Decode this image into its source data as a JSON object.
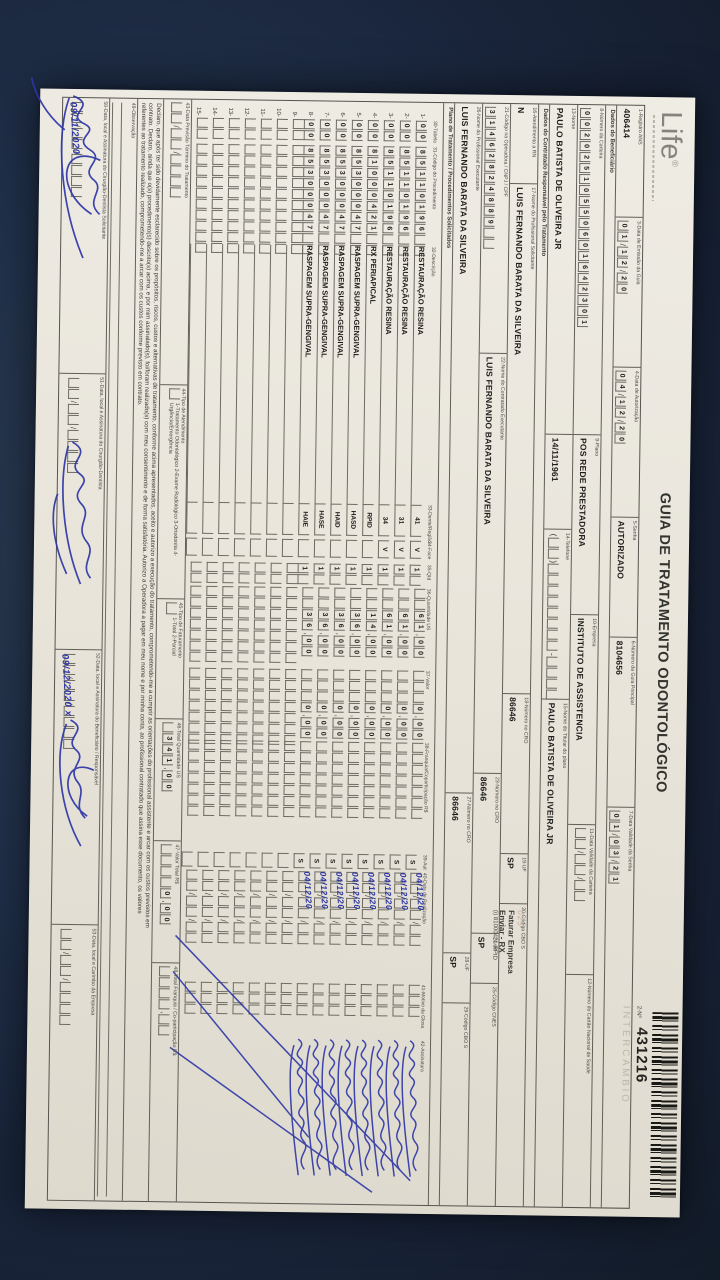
{
  "header": {
    "logo": "Life",
    "logo_reg": "®",
    "title": "GUIA DE TRATAMENTO ODONTOLÓGICO",
    "numero_label": "2-Nº",
    "numero": "431216",
    "watermark": "INTERCÂMBIO"
  },
  "top_fields": [
    {
      "id": "registro-ans",
      "label": "1-Registro ANS",
      "type": "text",
      "value": "406414"
    },
    {
      "id": "data-emissao",
      "label": "3-Data de Emissão da Guia",
      "type": "boxes",
      "value": "01/12/20"
    },
    {
      "id": "data-autorizacao",
      "label": "4-Data de Autorização",
      "type": "boxes",
      "value": "04/12/20"
    },
    {
      "id": "senha",
      "label": "5-Senha",
      "type": "text",
      "value": "AUTORIZADO"
    },
    {
      "id": "guia-principal",
      "label": "6-Número da Guia Principal",
      "type": "text",
      "value": "8104656"
    },
    {
      "id": "validade-senha",
      "label": "7-Data Validade da Senha",
      "type": "boxes",
      "value": "01/03/21"
    }
  ],
  "section_titles": {
    "beneficiario": "Dados do Beneficiário",
    "contratado": "Dados do Contratado Responsável pelo Tratamento",
    "plano": "Plano de Tratamento / Procedimentos Solicitados"
  },
  "beneficiario_rows": [
    [
      {
        "id": "numero-carteira",
        "label": "8-Número da Carteira",
        "type": "boxes",
        "value": "00202510550601642301"
      },
      {
        "id": "plano",
        "label": "9-Plano",
        "type": "text",
        "value": "POS REDE PRESTADORA"
      },
      {
        "id": "empresa",
        "label": "10-Empresa",
        "type": "text",
        "value": "INSTITUTO DE ASSISTENCIA"
      },
      {
        "id": "validade-carteira",
        "label": "11-Data Validade da Carteira",
        "type": "boxes",
        "value": "  /  /  "
      },
      {
        "id": "cns",
        "label": "12-Número do Cartão Nacional de Saúde",
        "type": "text",
        "value": ""
      }
    ],
    [
      {
        "id": "nome",
        "label": "13-Nome",
        "type": "text",
        "value": "PAULO BATISTA DE OLIVEIRA JR"
      },
      {
        "id": "nascimento",
        "label": "",
        "type": "text",
        "value": "14/11/1961"
      },
      {
        "id": "telefone",
        "label": "14-Telefone",
        "type": "boxes",
        "value": "(  )        -    "
      },
      {
        "id": "titular",
        "label": "15-Nome do Titular do plano",
        "type": "text",
        "value": "PAULO BATISTA DE OLIVEIRA JR"
      }
    ]
  ],
  "contratado_rows": [
    [
      {
        "id": "atendimento-rn",
        "label": "16-Atendimento a RN",
        "type": "text",
        "value": "N"
      },
      {
        "id": "prof-solicitante",
        "label": "17-Nome do Profissional Solicitante",
        "type": "text",
        "value": "LUIS FERNANDO BARATA DA SILVEIRA"
      },
      {
        "id": "cro-18",
        "label": "18-Número no CRO",
        "type": "text",
        "value": "86646"
      },
      {
        "id": "uf-19",
        "label": "19-UF",
        "type": "text",
        "value": "SP"
      },
      {
        "id": "cbo-20",
        "label": "20-Código CBO S",
        "type": "text",
        "value": ""
      }
    ],
    [
      {
        "id": "codigo-operadora",
        "label": "21-Código na Operadora / CNPJ / CPF",
        "type": "boxes",
        "value": "31462824889  "
      },
      {
        "id": "contratado-executante",
        "label": "22-Nome do Contratado Executante",
        "type": "text",
        "value": "LUIS FERNANDO BARATA DA SILVEIRA"
      },
      {
        "id": "cro-23",
        "label": "23-Número no CRO",
        "type": "text",
        "value": "86646"
      },
      {
        "id": "uf-24",
        "label": "24-UF",
        "type": "text",
        "value": "SP"
      },
      {
        "id": "cnes-25",
        "label": "25-Código CNES",
        "type": "text",
        "value": ""
      }
    ],
    [
      {
        "id": "prof-executante",
        "label": "26-Nome do Profissional Executante",
        "type": "text",
        "value": "LUIS FERNANDO BARATA DA SILVEIRA"
      },
      {
        "id": "cro-27",
        "label": "27-Número no CRO",
        "type": "text",
        "value": "86646"
      },
      {
        "id": "uf-28",
        "label": "28-UF",
        "type": "text",
        "value": "SP"
      },
      {
        "id": "cbo-29",
        "label": "29-Código CBO S",
        "type": "text",
        "value": ""
      }
    ]
  ],
  "annotation": {
    "stamp": "025",
    "lines": [
      "Faturar Empresa",
      "Enviar - RX",
      "(i) 81000421-RPID"
    ]
  },
  "table": {
    "headers": [
      "30-Tabela",
      "31-Código do Procedimento",
      "32-Descrição",
      "33-Dente/Região",
      "34-Face",
      "35-Qtd",
      "36-Quantidade US",
      "37-Valor",
      "38-Franquia/Coparticipação R$",
      "39-Aut",
      "40-Data de Realização",
      "41-Motivo da Glosa",
      "42-Assinatura"
    ],
    "rows": [
      {
        "n": "1",
        "tabela": "00",
        "codigo": "85110196  ",
        "descricao": "RESTAURAÇÃO RESINA",
        "dente": "41",
        "face": "V",
        "qtd": "1 ",
        "qtd_us": "  61,00",
        "valor": "   0,00",
        "franquia": "       ",
        "aut": "S",
        "data": "04/12/20"
      },
      {
        "n": "2",
        "tabela": "00",
        "codigo": "85110196  ",
        "descricao": "RESTAURAÇÃO RESINA",
        "dente": "31",
        "face": "V",
        "qtd": "1 ",
        "qtd_us": "  61,00",
        "valor": "   0,00",
        "franquia": "       ",
        "aut": "S",
        "data": "04/12/20"
      },
      {
        "n": "3",
        "tabela": "00",
        "codigo": "85110196  ",
        "descricao": "RESTAURAÇÃO RESINA",
        "dente": "34",
        "face": "V",
        "qtd": "1 ",
        "qtd_us": "  61,00",
        "valor": "   0,00",
        "franquia": "       ",
        "aut": "S",
        "data": "04/12/20"
      },
      {
        "n": "4",
        "tabela": "00",
        "codigo": "81000421  ",
        "descricao": "RX PERIAPICAL",
        "dente": "RPID",
        "face": "",
        "qtd": "1 ",
        "qtd_us": "  14,00",
        "valor": "   0,00",
        "franquia": "       ",
        "aut": "S",
        "data": "04/12/20"
      },
      {
        "n": "5",
        "tabela": "00",
        "codigo": "85300047  ",
        "descricao": "RASPAGEM SUPRA-GENGIVAL",
        "dente": "HASD",
        "face": "",
        "qtd": "1 ",
        "qtd_us": "  36,00",
        "valor": "   0,00",
        "franquia": "       ",
        "aut": "S",
        "data": "04/12/20"
      },
      {
        "n": "6",
        "tabela": "00",
        "codigo": "85300047  ",
        "descricao": "RASPAGEM SUPRA-GENGIVAL",
        "dente": "HAID",
        "face": "",
        "qtd": "1 ",
        "qtd_us": "  36,00",
        "valor": "   0,00",
        "franquia": "       ",
        "aut": "S",
        "data": "04/12/20"
      },
      {
        "n": "7",
        "tabela": "00",
        "codigo": "85300047  ",
        "descricao": "RASPAGEM SUPRA-GENGIVAL",
        "dente": "HASE",
        "face": "",
        "qtd": "1 ",
        "qtd_us": "  36,00",
        "valor": "   0,00",
        "franquia": "       ",
        "aut": "S",
        "data": "04/12/20"
      },
      {
        "n": "8",
        "tabela": "00",
        "codigo": "85300047  ",
        "descricao": "RASPAGEM SUPRA-GENGIVAL",
        "dente": "HAIE",
        "face": "",
        "qtd": "1 ",
        "qtd_us": "  36,00",
        "valor": "   0,00",
        "franquia": "       ",
        "aut": "S",
        "data": "04/12/20"
      },
      {
        "n": "9",
        "tabela": "  ",
        "codigo": "          ",
        "descricao": "",
        "dente": "",
        "face": "",
        "qtd": "  ",
        "qtd_us": "       ",
        "valor": "       ",
        "franquia": "       ",
        "aut": "",
        "data": ""
      },
      {
        "n": "10",
        "tabela": "  ",
        "codigo": "          ",
        "descricao": "",
        "dente": "",
        "face": "",
        "qtd": "  ",
        "qtd_us": "       ",
        "valor": "       ",
        "franquia": "       ",
        "aut": "",
        "data": ""
      },
      {
        "n": "11",
        "tabela": "  ",
        "codigo": "          ",
        "descricao": "",
        "dente": "",
        "face": "",
        "qtd": "  ",
        "qtd_us": "       ",
        "valor": "       ",
        "franquia": "       ",
        "aut": "",
        "data": ""
      },
      {
        "n": "12",
        "tabela": "  ",
        "codigo": "          ",
        "descricao": "",
        "dente": "",
        "face": "",
        "qtd": "  ",
        "qtd_us": "       ",
        "valor": "       ",
        "franquia": "       ",
        "aut": "",
        "data": ""
      },
      {
        "n": "13",
        "tabela": "  ",
        "codigo": "          ",
        "descricao": "",
        "dente": "",
        "face": "",
        "qtd": "  ",
        "qtd_us": "       ",
        "valor": "       ",
        "franquia": "       ",
        "aut": "",
        "data": ""
      },
      {
        "n": "14",
        "tabela": "  ",
        "codigo": "          ",
        "descricao": "",
        "dente": "",
        "face": "",
        "qtd": "  ",
        "qtd_us": "       ",
        "valor": "       ",
        "franquia": "       ",
        "aut": "",
        "data": ""
      },
      {
        "n": "15",
        "tabela": "  ",
        "codigo": "          ",
        "descricao": "",
        "dente": "",
        "face": "",
        "qtd": "  ",
        "qtd_us": "       ",
        "valor": "       ",
        "franquia": "       ",
        "aut": "",
        "data": ""
      }
    ]
  },
  "bottom_fields": {
    "previsao": {
      "label": "43-Data Previsão Término do Tratamento",
      "value": "  /  /    "
    },
    "tipo_atendimento": {
      "label": "44-Tipo de Atendimento",
      "box": " ",
      "options": "1-Tratamento Odontológico  2-Exame Radiológico  3-Ortodontia  4-Urgência/Emergência"
    },
    "tipo_faturamento": {
      "label": "45-Tipo de Faturamento",
      "box": " ",
      "options": "1-Total  2-Parcial"
    },
    "total_us": {
      "label": "46-Total Quantidade US",
      "value": " 341,00"
    },
    "valor_total": {
      "label": "47-Valor Total R$",
      "value": "    0,00"
    },
    "total_franquia": {
      "label": "48-Total Franquia / Co-participação R$",
      "value": "    ,  "
    }
  },
  "declaration": {
    "lines": [
      "Declaro, que após ter sido devidamente esclarecido sobre os propósitos, riscos, custos e alternativas de tratamento, conforme acima apresentados, aceito e autorizo a execução do tratamento, comprometendo-me a cumprir as orientações do profissional assistente e arcar com os custos previstos em",
      "contrato. Declaro, ainda que o(s) procedimento(s) descrito(s) acima, e por mim assinalado(s), foi/foram realizado(s) com meu consentimento e de forma satisfatória. Autorizo a Operadora a pagar em meu nome e por minha conta, ao profissional contratado que assina esse documento, os valores",
      "referentes ao tratamento realizado, comprometendo-me a arcar com os custos conforme previsto em contrato."
    ]
  },
  "observacao_label": "49-Observação",
  "signature_boxes": [
    {
      "id": "sig-solicitante",
      "label": "50-Data, local e Assinatura do Cirurgião-Dentista Solicitante",
      "date": "09/11/2020",
      "signed": true
    },
    {
      "id": "sig-dentista",
      "label": "51-Data, local e Assinatura do Cirurgião-Dentista",
      "date": "",
      "signed": true
    },
    {
      "id": "sig-beneficiario",
      "label": "52-Data, local e Assinatura do Beneficiário / Responsável",
      "date": "09/12/2020",
      "extra": "x",
      "signed": true
    },
    {
      "id": "carimbo-empresa",
      "label": "53-Data, local e Carimbo da Empresa",
      "date": "",
      "signed": false
    }
  ]
}
